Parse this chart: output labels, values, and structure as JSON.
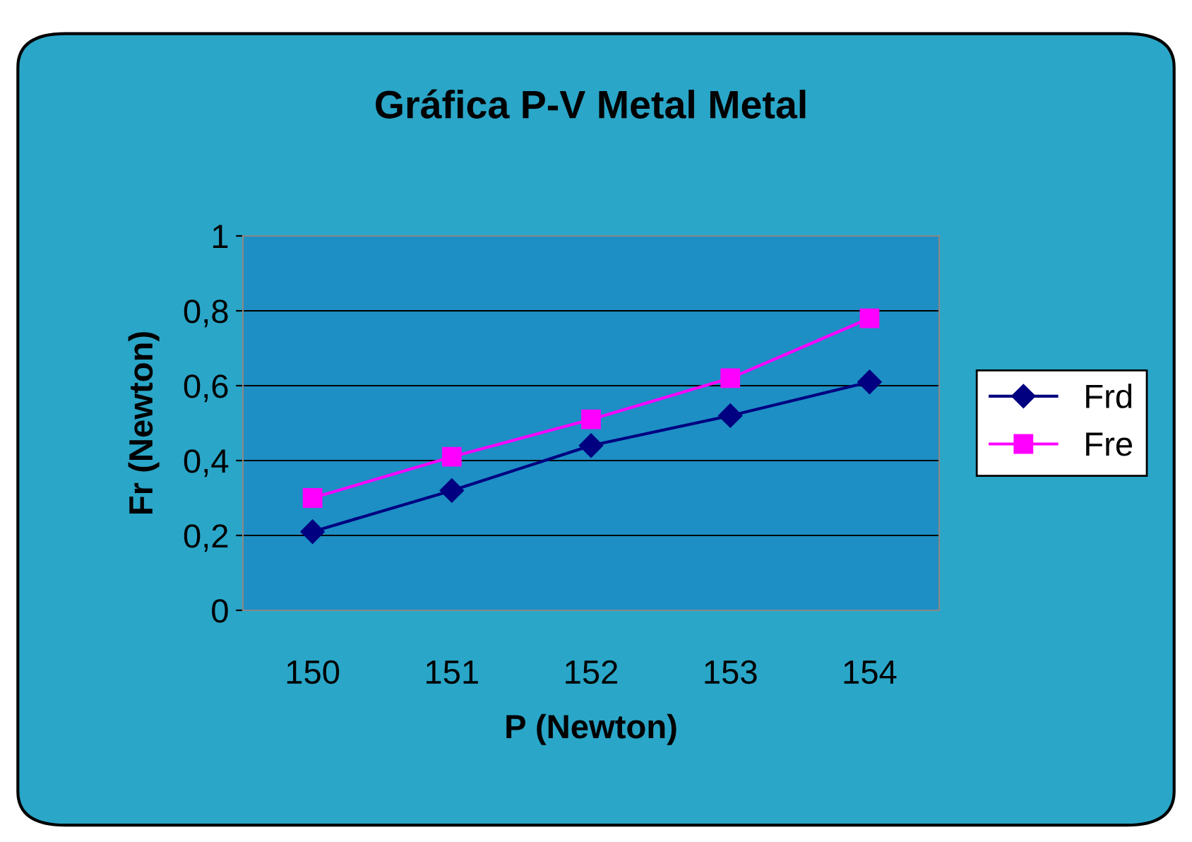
{
  "chart_data": {
    "type": "line",
    "title": "Gráfica P-V Metal Metal",
    "xlabel": "P (Newton)",
    "ylabel": "Fr (Newton)",
    "categories": [
      "150",
      "151",
      "152",
      "153",
      "154"
    ],
    "series": [
      {
        "name": "Frd",
        "color": "#000080",
        "marker": "diamond",
        "values": [
          0.21,
          0.32,
          0.44,
          0.52,
          0.61
        ]
      },
      {
        "name": "Fre",
        "color": "#ff00ff",
        "marker": "square",
        "values": [
          0.3,
          0.41,
          0.51,
          0.62,
          0.78
        ]
      }
    ],
    "ylim": [
      0,
      1
    ],
    "yticks": [
      0,
      "0,2",
      "0,4",
      "0,6",
      "0,8",
      1
    ],
    "grid": "y",
    "legend": "right"
  }
}
